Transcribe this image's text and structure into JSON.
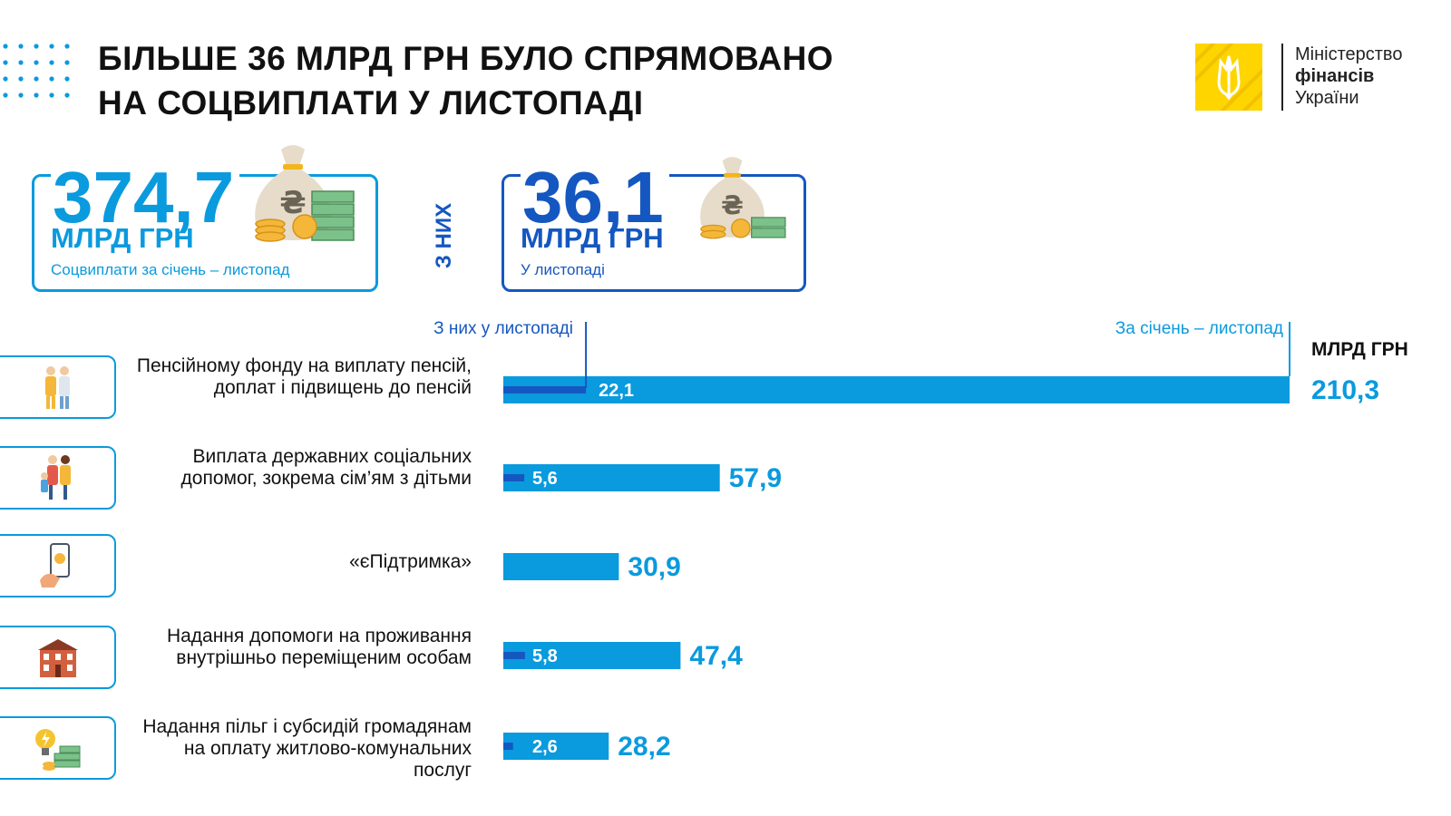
{
  "title": {
    "line1": "БІЛЬШЕ 36 МЛРД ГРН БУЛО СПРЯМОВАНО",
    "line2": "НА СОЦВИПЛАТИ У ЛИСТОПАДІ"
  },
  "logo": {
    "line1": "Міністерство",
    "line2": "фінансів",
    "line3": "України"
  },
  "colors": {
    "ytd_bar": "#0a9ade",
    "nov_bar": "#1557c0",
    "border": "#0a9ade",
    "logo_yellow": "#ffd500"
  },
  "stats": {
    "total": {
      "value": "374,7",
      "unit": "МЛРД ГРН",
      "desc": "Соцвиплати за січень – листопад",
      "icon": "money-bag-icon"
    },
    "of_them_label": "З НИХ",
    "november": {
      "value": "36,1",
      "unit": "МЛРД ГРН",
      "desc": "У листопаді",
      "icon": "money-bag-icon"
    }
  },
  "chart_data": {
    "type": "bar",
    "orientation": "horizontal",
    "unit_label": "МЛРД ГРН",
    "legend": {
      "november": "З них у листопаді",
      "ytd": "За січень –  листопад"
    },
    "categories": [
      {
        "label": "Пенсійному фонду на виплату пенсій, доплат і підвищень до пенсій",
        "icon": "elderly-couple-icon"
      },
      {
        "label": "Виплата державних соціальних допомог, зокрема сім’ям з дітьми",
        "icon": "family-icon"
      },
      {
        "label": "«єПідтримка»",
        "icon": "phone-payment-icon"
      },
      {
        "label": "Надання допомоги на проживання внутрішньо переміщеним особам",
        "icon": "house-icon"
      },
      {
        "label": "Надання пільг і субсидій громадянам на оплату житлово-комунальних послуг",
        "icon": "utilities-icon"
      }
    ],
    "series": [
      {
        "name": "За січень –  листопад",
        "values": [
          210.3,
          57.9,
          30.9,
          47.4,
          28.2
        ],
        "labels": [
          "210,3",
          "57,9",
          "30,9",
          "47,4",
          "28,2"
        ]
      },
      {
        "name": "З них у листопаді",
        "values": [
          22.1,
          5.6,
          null,
          5.8,
          2.6
        ],
        "labels": [
          "22,1",
          "5,6",
          "",
          "5,8",
          "2,6"
        ]
      }
    ]
  }
}
